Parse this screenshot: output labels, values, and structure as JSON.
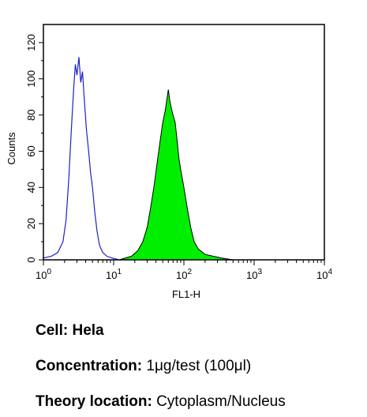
{
  "chart_data": {
    "type": "area",
    "xlabel": "FL1-H",
    "ylabel": "Counts",
    "xscale": "log",
    "xlim": [
      1,
      10000
    ],
    "ylim": [
      0,
      130
    ],
    "x_ticks": [
      {
        "base": "10",
        "exp": "0",
        "value": 1
      },
      {
        "base": "10",
        "exp": "1",
        "value": 10
      },
      {
        "base": "10",
        "exp": "2",
        "value": 100
      },
      {
        "base": "10",
        "exp": "3",
        "value": 1000
      },
      {
        "base": "10",
        "exp": "4",
        "value": 10000
      }
    ],
    "y_ticks": [
      "0",
      "20",
      "40",
      "60",
      "80",
      "100",
      "120"
    ],
    "grid": false,
    "series": [
      {
        "style": "outline",
        "color": "#1f1fcc",
        "points": [
          [
            1.0,
            1
          ],
          [
            1.3,
            2
          ],
          [
            1.6,
            4
          ],
          [
            1.9,
            10
          ],
          [
            2.1,
            22
          ],
          [
            2.3,
            45
          ],
          [
            2.5,
            72
          ],
          [
            2.7,
            95
          ],
          [
            2.85,
            108
          ],
          [
            3.0,
            102
          ],
          [
            3.2,
            112
          ],
          [
            3.4,
            98
          ],
          [
            3.6,
            104
          ],
          [
            3.8,
            90
          ],
          [
            4.1,
            72
          ],
          [
            4.4,
            60
          ],
          [
            4.7,
            48
          ],
          [
            5.0,
            40
          ],
          [
            5.4,
            26
          ],
          [
            5.8,
            16
          ],
          [
            6.3,
            8
          ],
          [
            7.0,
            4
          ],
          [
            8.0,
            2
          ],
          [
            9.5,
            1
          ],
          [
            12,
            0
          ]
        ]
      },
      {
        "style": "filled",
        "color": "#00ee00",
        "points": [
          [
            12,
            0
          ],
          [
            18,
            2
          ],
          [
            22,
            5
          ],
          [
            26,
            10
          ],
          [
            30,
            18
          ],
          [
            34,
            30
          ],
          [
            38,
            42
          ],
          [
            42,
            55
          ],
          [
            46,
            66
          ],
          [
            50,
            76
          ],
          [
            54,
            82
          ],
          [
            58,
            90
          ],
          [
            60,
            94
          ],
          [
            63,
            88
          ],
          [
            66,
            84
          ],
          [
            70,
            80
          ],
          [
            75,
            76
          ],
          [
            80,
            66
          ],
          [
            85,
            56
          ],
          [
            90,
            50
          ],
          [
            100,
            40
          ],
          [
            110,
            30
          ],
          [
            125,
            18
          ],
          [
            140,
            10
          ],
          [
            160,
            6
          ],
          [
            200,
            3
          ],
          [
            260,
            2
          ],
          [
            350,
            1
          ],
          [
            500,
            0
          ]
        ]
      }
    ]
  },
  "caption": {
    "cell_label": "Cell:",
    "cell_value": "Hela",
    "concentration_label": "Concentration:",
    "concentration_value": "1μg/test (100μl)",
    "location_label": "Theory location:",
    "location_value": "Cytoplasm/Nucleus"
  }
}
